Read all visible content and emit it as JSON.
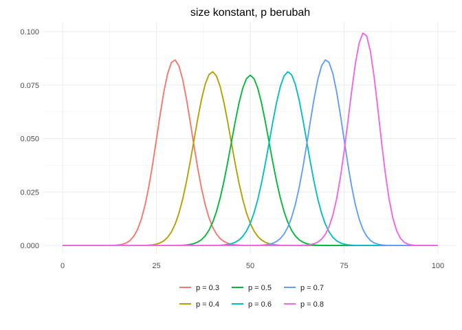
{
  "chart_data": {
    "type": "line",
    "title": "size konstant, p berubah",
    "xlabel": "",
    "ylabel": "",
    "xlim": [
      0,
      100
    ],
    "ylim": [
      0,
      0.1
    ],
    "x_ticks": [
      0,
      25,
      50,
      75,
      100
    ],
    "x_tick_labels": [
      "0",
      "25",
      "50",
      "75",
      "100"
    ],
    "y_ticks": [
      0,
      0.025,
      0.05,
      0.075,
      0.1
    ],
    "y_tick_labels": [
      "0.000",
      "0.025",
      "0.050",
      "0.075",
      "0.100"
    ],
    "grid": true,
    "legend_position": "bottom",
    "distribution": "binomial",
    "size": 100,
    "series": [
      {
        "name": "p = 0.3",
        "p": 0.3,
        "color": "#F8766D"
      },
      {
        "name": "p = 0.4",
        "p": 0.4,
        "color": "#B79F00"
      },
      {
        "name": "p = 0.5",
        "p": 0.5,
        "color": "#00BA38"
      },
      {
        "name": "p = 0.6",
        "p": 0.6,
        "color": "#00BFC4"
      },
      {
        "name": "p = 0.7",
        "p": 0.7,
        "color": "#619CFF"
      },
      {
        "name": "p = 0.8",
        "p": 0.8,
        "color": "#F564E3"
      }
    ]
  }
}
